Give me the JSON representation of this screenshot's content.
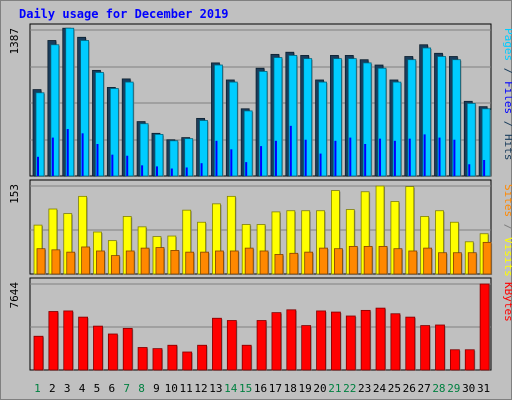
{
  "title": "Daily usage for December 2019",
  "colors": {
    "hits": "#00ccff",
    "files": "#1a3d5c",
    "pages": "#0000ff",
    "visits": "#ffff00",
    "sites": "#ff8800",
    "kbytes": "#ff0000",
    "weekend_label": "#008040",
    "weekday_label": "#000000",
    "max_label": "#000000"
  },
  "chart_data": [
    {
      "type": "bar",
      "panel": "hits-files-pages",
      "max_label": "1387",
      "ylim": [
        0,
        1387
      ],
      "legend": [
        "Pages",
        "Files",
        "Hits"
      ],
      "categories": [
        "1",
        "2",
        "3",
        "4",
        "5",
        "6",
        "7",
        "8",
        "9",
        "10",
        "11",
        "12",
        "13",
        "14",
        "15",
        "16",
        "17",
        "18",
        "19",
        "20",
        "21",
        "22",
        "23",
        "24",
        "25",
        "26",
        "27",
        "28",
        "29",
        "30",
        "31"
      ],
      "series": [
        {
          "name": "Hits",
          "values": [
            780,
            1230,
            1385,
            1270,
            970,
            820,
            880,
            490,
            390,
            330,
            350,
            520,
            1040,
            880,
            610,
            980,
            1110,
            1130,
            1100,
            880,
            1100,
            1100,
            1060,
            1010,
            880,
            1090,
            1200,
            1120,
            1090,
            680,
            630
          ]
        },
        {
          "name": "Files",
          "values": [
            810,
            1270,
            1385,
            1300,
            990,
            830,
            910,
            510,
            400,
            340,
            360,
            540,
            1060,
            900,
            630,
            1010,
            1140,
            1160,
            1130,
            900,
            1130,
            1130,
            1090,
            1040,
            900,
            1120,
            1230,
            1150,
            1120,
            700,
            650
          ]
        },
        {
          "name": "Pages",
          "values": [
            180,
            360,
            440,
            400,
            300,
            200,
            190,
            100,
            90,
            70,
            80,
            120,
            330,
            250,
            130,
            280,
            330,
            470,
            340,
            210,
            330,
            360,
            300,
            350,
            330,
            350,
            390,
            360,
            340,
            110,
            150
          ]
        }
      ]
    },
    {
      "type": "bar",
      "panel": "visits-sites",
      "max_label": "153",
      "ylim": [
        0,
        153
      ],
      "legend": [
        "Sites",
        "Visits"
      ],
      "categories": [
        "1",
        "2",
        "3",
        "4",
        "5",
        "6",
        "7",
        "8",
        "9",
        "10",
        "11",
        "12",
        "13",
        "14",
        "15",
        "16",
        "17",
        "18",
        "19",
        "20",
        "21",
        "22",
        "23",
        "24",
        "25",
        "26",
        "27",
        "28",
        "29",
        "30",
        "31"
      ],
      "series": [
        {
          "name": "Visits",
          "values": [
            85,
            113,
            105,
            135,
            73,
            58,
            100,
            82,
            65,
            66,
            111,
            90,
            122,
            135,
            86,
            86,
            108,
            110,
            110,
            110,
            145,
            112,
            143,
            153,
            126,
            152,
            100,
            110,
            90,
            56,
            70
          ]
        },
        {
          "name": "Sites",
          "values": [
            44,
            42,
            38,
            47,
            40,
            32,
            40,
            45,
            46,
            41,
            38,
            38,
            40,
            40,
            45,
            40,
            34,
            36,
            38,
            45,
            44,
            48,
            48,
            48,
            44,
            40,
            45,
            37,
            37,
            37,
            55
          ]
        }
      ]
    },
    {
      "type": "bar",
      "panel": "kbytes",
      "max_label": "7644",
      "ylim": [
        0,
        7644
      ],
      "legend": [
        "KBytes"
      ],
      "categories": [
        "1",
        "2",
        "3",
        "4",
        "5",
        "6",
        "7",
        "8",
        "9",
        "10",
        "11",
        "12",
        "13",
        "14",
        "15",
        "16",
        "17",
        "18",
        "19",
        "20",
        "21",
        "22",
        "23",
        "24",
        "25",
        "26",
        "27",
        "28",
        "29",
        "30",
        "31"
      ],
      "series": [
        {
          "name": "KBytes",
          "values": [
            3000,
            5200,
            5250,
            4700,
            3900,
            3200,
            3700,
            2000,
            1900,
            2200,
            1600,
            2200,
            4600,
            4400,
            2200,
            4400,
            5100,
            5350,
            3950,
            5250,
            5150,
            4800,
            5300,
            5500,
            5000,
            4700,
            3950,
            4000,
            1800,
            1800,
            7644
          ]
        }
      ]
    }
  ]
}
